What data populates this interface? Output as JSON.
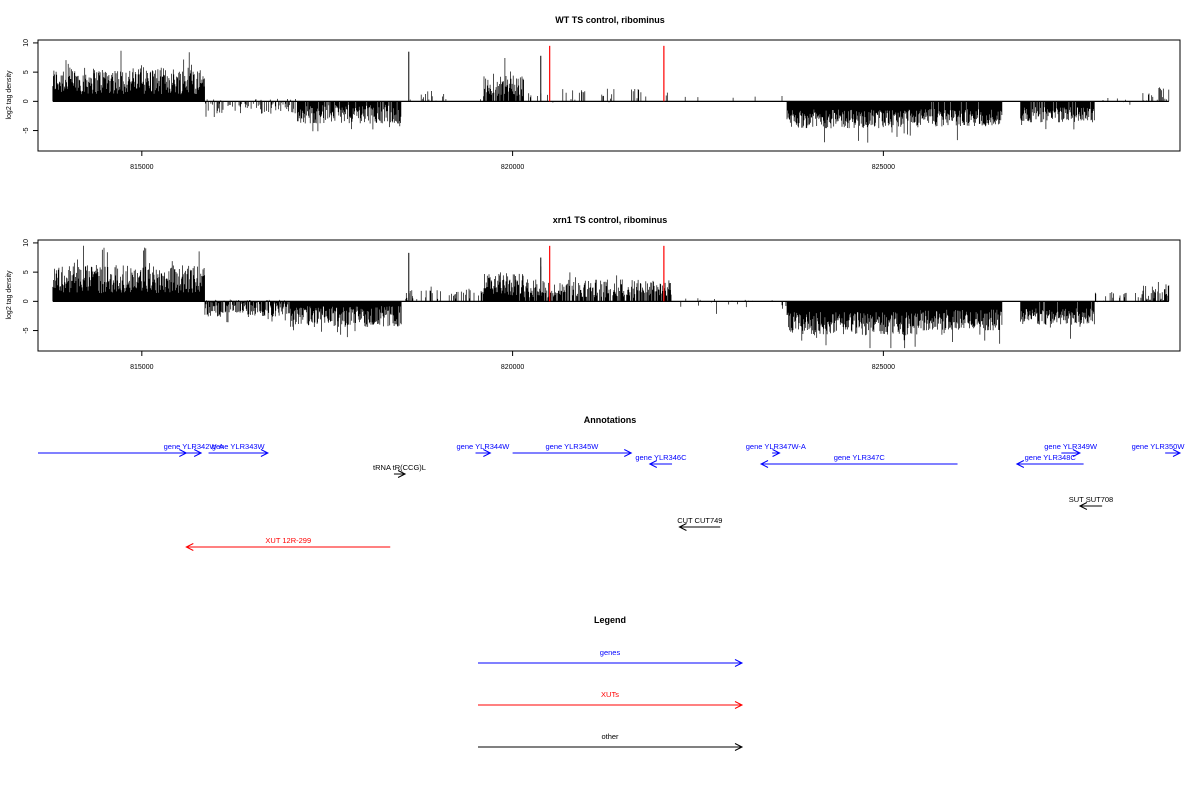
{
  "colors": {
    "gene": "#0000ff",
    "xut": "#ff0000",
    "other": "#000000",
    "marker": "#ff0000"
  },
  "chart_data": [
    {
      "type": "bar",
      "title": "WT TS control, ribominus",
      "ylabel": "log2 tag density",
      "xlim": [
        813600,
        829000
      ],
      "ylim": [
        -8.5,
        10.5
      ],
      "x_ticks": [
        815000,
        820000,
        825000
      ],
      "x_tick_labels": [
        "815000",
        "820000",
        "825000"
      ],
      "y_ticks": [
        -5,
        0,
        5,
        10
      ],
      "y_tick_labels": [
        "-5",
        "0",
        "5",
        "10"
      ],
      "data_range": [
        813800,
        828850
      ],
      "segments": [
        {
          "start": 813800,
          "end": 815850,
          "mean": 3.5,
          "spread": 2.3,
          "density": 1.0
        },
        {
          "start": 815850,
          "end": 817100,
          "mean": -0.8,
          "spread": 1.3,
          "density": 0.45
        },
        {
          "start": 817100,
          "end": 818500,
          "mean": -2.2,
          "spread": 1.6,
          "density": 0.9
        },
        {
          "start": 818500,
          "end": 819600,
          "mean": 0.8,
          "spread": 1.0,
          "density": 0.12
        },
        {
          "start": 819600,
          "end": 820150,
          "mean": 2.8,
          "spread": 2.0,
          "density": 0.85
        },
        {
          "start": 820150,
          "end": 822150,
          "mean": 1.0,
          "spread": 1.2,
          "density": 0.12
        },
        {
          "start": 822150,
          "end": 823700,
          "mean": 0.0,
          "spread": 1.0,
          "density": 0.04
        },
        {
          "start": 823700,
          "end": 825500,
          "mean": -3.0,
          "spread": 1.6,
          "density": 1.0
        },
        {
          "start": 825500,
          "end": 826600,
          "mean": -2.8,
          "spread": 1.5,
          "density": 0.95
        },
        {
          "start": 826600,
          "end": 826850,
          "mean": 0.0,
          "spread": 0.4,
          "density": 0.03
        },
        {
          "start": 826850,
          "end": 827850,
          "mean": -2.3,
          "spread": 1.3,
          "density": 0.9
        },
        {
          "start": 827850,
          "end": 828500,
          "mean": 0.0,
          "spread": 0.6,
          "density": 0.05
        },
        {
          "start": 828500,
          "end": 828850,
          "mean": 1.3,
          "spread": 1.2,
          "density": 0.4
        }
      ],
      "spikes": [
        {
          "x": 818600,
          "y": 8.5
        },
        {
          "x": 820380,
          "y": 7.8
        }
      ],
      "markers": [
        {
          "x": 820500,
          "y": 9.5
        },
        {
          "x": 822040,
          "y": 9.5
        }
      ]
    },
    {
      "type": "bar",
      "title": "xrn1 TS control, ribominus",
      "ylabel": "log2 tag density",
      "xlim": [
        813600,
        829000
      ],
      "ylim": [
        -8.5,
        10.5
      ],
      "x_ticks": [
        815000,
        820000,
        825000
      ],
      "x_tick_labels": [
        "815000",
        "820000",
        "825000"
      ],
      "y_ticks": [
        -5,
        0,
        5,
        10
      ],
      "y_tick_labels": [
        "-5",
        "0",
        "5",
        "10"
      ],
      "data_range": [
        813800,
        828850
      ],
      "segments": [
        {
          "start": 813800,
          "end": 815850,
          "mean": 3.8,
          "spread": 2.4,
          "density": 1.0
        },
        {
          "start": 815850,
          "end": 817000,
          "mean": -1.2,
          "spread": 1.5,
          "density": 0.95
        },
        {
          "start": 817000,
          "end": 818500,
          "mean": -2.6,
          "spread": 1.8,
          "density": 1.0
        },
        {
          "start": 818500,
          "end": 819600,
          "mean": 1.0,
          "spread": 1.0,
          "density": 0.3
        },
        {
          "start": 819600,
          "end": 820150,
          "mean": 3.0,
          "spread": 2.0,
          "density": 0.95
        },
        {
          "start": 820150,
          "end": 822150,
          "mean": 2.2,
          "spread": 1.6,
          "density": 0.75
        },
        {
          "start": 822150,
          "end": 823700,
          "mean": -0.4,
          "spread": 1.0,
          "density": 0.15
        },
        {
          "start": 823700,
          "end": 825500,
          "mean": -3.8,
          "spread": 2.0,
          "density": 1.0
        },
        {
          "start": 825500,
          "end": 826600,
          "mean": -3.2,
          "spread": 1.8,
          "density": 1.0
        },
        {
          "start": 826600,
          "end": 826850,
          "mean": 0.0,
          "spread": 0.4,
          "density": 0.03
        },
        {
          "start": 826850,
          "end": 827850,
          "mean": -2.6,
          "spread": 1.4,
          "density": 0.95
        },
        {
          "start": 827850,
          "end": 828500,
          "mean": 0.6,
          "spread": 1.0,
          "density": 0.3
        },
        {
          "start": 828500,
          "end": 828850,
          "mean": 1.6,
          "spread": 1.4,
          "density": 0.6
        }
      ],
      "spikes": [
        {
          "x": 818600,
          "y": 8.3
        },
        {
          "x": 820380,
          "y": 7.5
        }
      ],
      "markers": [
        {
          "x": 820500,
          "y": 9.5
        },
        {
          "x": 822040,
          "y": 9.5
        }
      ]
    }
  ],
  "annotations": {
    "title": "Annotations",
    "features": [
      {
        "label": "",
        "type": "gene",
        "start": 813600,
        "end": 815600,
        "strand": "+"
      },
      {
        "label": "gene YLR342W-A",
        "type": "gene",
        "start": 815600,
        "end": 815800,
        "strand": "+"
      },
      {
        "label": "gene YLR343W",
        "type": "gene",
        "start": 815900,
        "end": 816700,
        "strand": "+"
      },
      {
        "label": "tRNA tR(CCG)L",
        "type": "other",
        "start": 818400,
        "end": 818550,
        "strand": "+"
      },
      {
        "label": "gene YLR344W",
        "type": "gene",
        "start": 819500,
        "end": 819700,
        "strand": "+"
      },
      {
        "label": "gene YLR345W",
        "type": "gene",
        "start": 820000,
        "end": 821600,
        "strand": "+"
      },
      {
        "label": "gene YLR346C",
        "type": "gene",
        "start": 821850,
        "end": 822150,
        "strand": "-"
      },
      {
        "label": "gene YLR347W-A",
        "type": "gene",
        "start": 823500,
        "end": 823600,
        "strand": "+"
      },
      {
        "label": "gene YLR347C",
        "type": "gene",
        "start": 823350,
        "end": 826000,
        "strand": "-"
      },
      {
        "label": "gene YLR349W",
        "type": "gene",
        "start": 827400,
        "end": 827650,
        "strand": "+"
      },
      {
        "label": "gene YLR348C",
        "type": "gene",
        "start": 826800,
        "end": 827700,
        "strand": "-"
      },
      {
        "label": "gene YLR350W",
        "type": "gene",
        "start": 828800,
        "end": 829000,
        "strand": "+"
      },
      {
        "label": "SUT SUT708",
        "type": "other",
        "start": 827650,
        "end": 827950,
        "strand": "-"
      },
      {
        "label": "CUT CUT749",
        "type": "other",
        "start": 822250,
        "end": 822800,
        "strand": "-"
      },
      {
        "label": "XUT 12R-299",
        "type": "xut",
        "start": 815600,
        "end": 818350,
        "strand": "-"
      }
    ]
  },
  "legend": {
    "title": "Legend",
    "items": [
      {
        "label": "genes",
        "type": "gene"
      },
      {
        "label": "XUTs",
        "type": "xut"
      },
      {
        "label": "other",
        "type": "other"
      }
    ]
  }
}
